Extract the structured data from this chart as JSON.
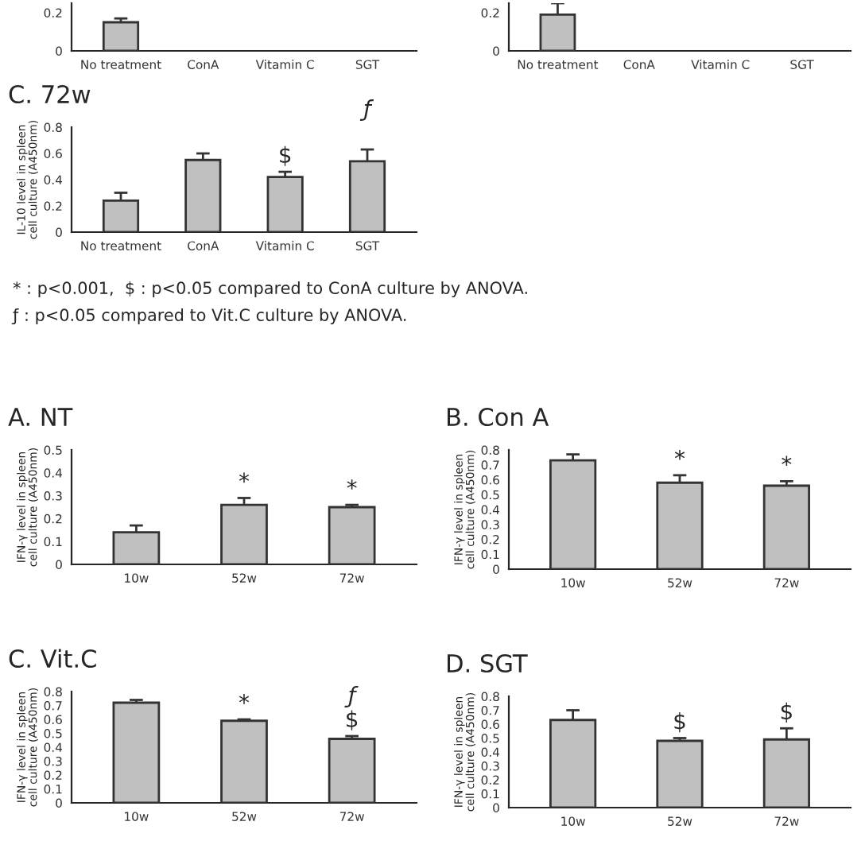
{
  "chart_data": [
    {
      "type": "bar",
      "categories": [
        "No treatment",
        "ConA",
        "Vitamin C",
        "SGT"
      ],
      "values": [
        0.15,
        null,
        null,
        null
      ],
      "errors": [
        0.02,
        null,
        null,
        null
      ],
      "color": "#c0c0c0",
      "ylim": [
        0,
        0.25
      ],
      "yticks": [
        0,
        0.2
      ],
      "grid": false,
      "legend": false
    },
    {
      "type": "bar",
      "categories": [
        "No treatment",
        "ConA",
        "Vitamin C",
        "SGT"
      ],
      "values": [
        0.19,
        null,
        null,
        null
      ],
      "errors": [
        0.06,
        null,
        null,
        null
      ],
      "color": "#c0c0c0",
      "ylim": [
        0,
        0.25
      ],
      "yticks": [
        0,
        0.2
      ],
      "grid": false,
      "legend": false
    },
    {
      "type": "bar",
      "title": "C. 72w",
      "ylabel": "IL-10 level in spleen cell culture (A450nm)",
      "categories": [
        "No treatment",
        "ConA",
        "Vitamin C",
        "SGT"
      ],
      "values": [
        0.24,
        0.55,
        0.42,
        0.54
      ],
      "errors": [
        0.06,
        0.05,
        0.04,
        0.09
      ],
      "color": "#c0c0c0",
      "ylim": [
        0,
        0.8
      ],
      "yticks": [
        0,
        0.2,
        0.4,
        0.6,
        0.8
      ],
      "grid": false,
      "legend": false,
      "annotations": [
        {
          "text": "$",
          "x": "Vitamin C",
          "y": 0.46
        },
        {
          "text": "ƒ",
          "x": "SGT",
          "y": 0.63
        },
        "* : p<0.001,  $ : p<0.05 compared to ConA culture by ANOVA.",
        "ƒ : p<0.05 compared to Vit.C culture by ANOVA."
      ]
    },
    {
      "type": "bar",
      "title": "A. NT",
      "ylabel": "IFN-γ level in spleen cell culture (A450nm)",
      "categories": [
        "10w",
        "52w",
        "72w"
      ],
      "values": [
        0.14,
        0.26,
        0.25
      ],
      "errors": [
        0.03,
        0.03,
        0.01
      ],
      "color": "#c0c0c0",
      "ylim": [
        0,
        0.5
      ],
      "yticks": [
        0,
        0.1,
        0.2,
        0.3,
        0.4,
        0.5
      ],
      "grid": false,
      "legend": false,
      "annotations": [
        {
          "text": "*",
          "x": "52w",
          "y": 0.29
        },
        {
          "text": "*",
          "x": "72w",
          "y": 0.26
        }
      ]
    },
    {
      "type": "bar",
      "title": "B. Con A",
      "ylabel": "IFN-γ level in spleen cell culture (A450nm)",
      "categories": [
        "10w",
        "52w",
        "72w"
      ],
      "values": [
        0.73,
        0.58,
        0.56
      ],
      "errors": [
        0.04,
        0.05,
        0.03
      ],
      "color": "#c0c0c0",
      "ylim": [
        0,
        0.8
      ],
      "yticks": [
        0,
        0.1,
        0.2,
        0.3,
        0.4,
        0.5,
        0.6,
        0.7,
        0.8
      ],
      "grid": false,
      "legend": false,
      "annotations": [
        {
          "text": "*",
          "x": "52w",
          "y": 0.63
        },
        {
          "text": "*",
          "x": "72w",
          "y": 0.59
        }
      ]
    },
    {
      "type": "bar",
      "title": "C. Vit.C",
      "ylabel": "IFN-γ level in spleen cell culture (A450nm)",
      "categories": [
        "10w",
        "52w",
        "72w"
      ],
      "values": [
        0.72,
        0.59,
        0.46
      ],
      "errors": [
        0.02,
        0.01,
        0.02
      ],
      "color": "#c0c0c0",
      "ylim": [
        0,
        0.8
      ],
      "yticks": [
        0,
        0.1,
        0.2,
        0.3,
        0.4,
        0.5,
        0.6,
        0.7,
        0.8
      ],
      "grid": false,
      "legend": false,
      "annotations": [
        {
          "text": "*",
          "x": "52w",
          "y": 0.6
        },
        {
          "text": "$",
          "x": "72w",
          "y": 0.48
        },
        {
          "text": "ƒ",
          "x": "72w",
          "y": 0.48
        }
      ]
    },
    {
      "type": "bar",
      "title": "D. SGT",
      "ylabel": "IFN-γ level in spleen cell culture (A450nm)",
      "categories": [
        "10w",
        "52w",
        "72w"
      ],
      "values": [
        0.63,
        0.48,
        0.49
      ],
      "errors": [
        0.07,
        0.02,
        0.08
      ],
      "color": "#c0c0c0",
      "ylim": [
        0,
        0.8
      ],
      "yticks": [
        0,
        0.1,
        0.2,
        0.3,
        0.4,
        0.5,
        0.6,
        0.7,
        0.8
      ],
      "grid": false,
      "legend": false,
      "annotations": [
        {
          "text": "$",
          "x": "52w",
          "y": 0.5
        },
        {
          "text": "$",
          "x": "72w",
          "y": 0.57
        }
      ]
    }
  ]
}
